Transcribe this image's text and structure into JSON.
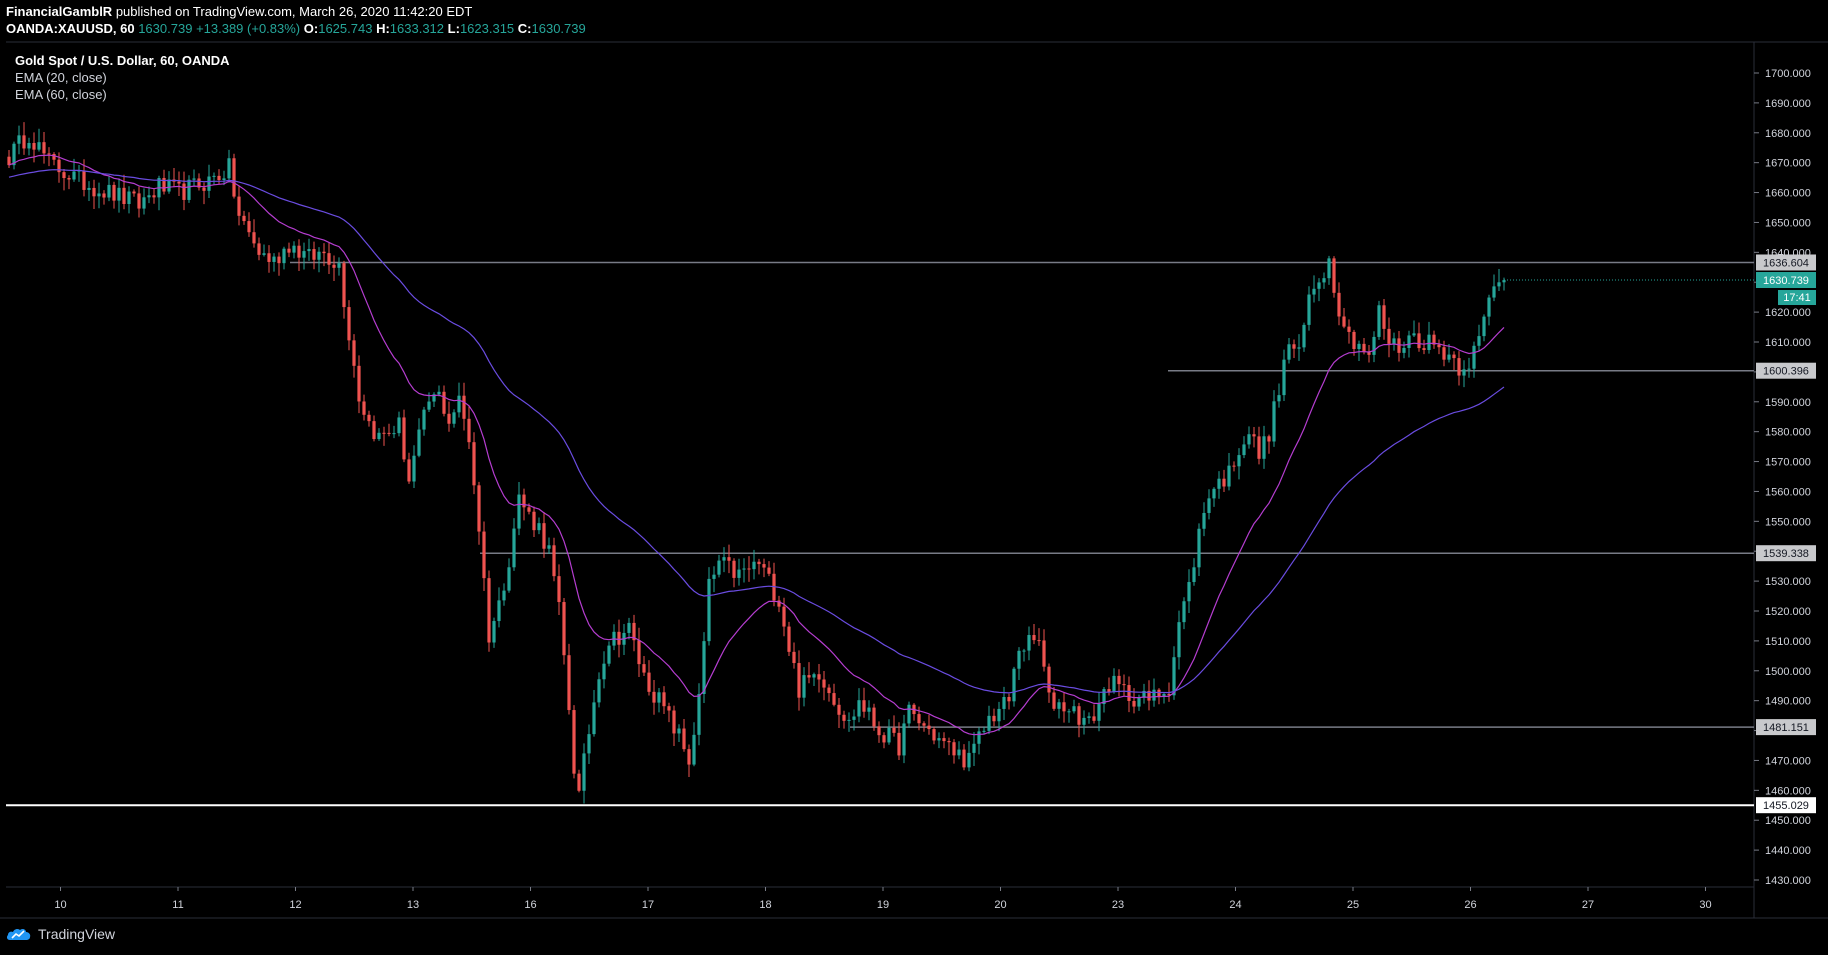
{
  "header": {
    "author": "FinancialGamblR",
    "published_text": "published on TradingView.com, March 26, 2020 11:42:20 EDT",
    "symbol": "OANDA:XAUUSD, 60",
    "last": "1630.739",
    "change": "+13.389 (+0.83%)",
    "o_label": "O:",
    "o": "1625.743",
    "h_label": "H:",
    "h": "1633.312",
    "l_label": "L:",
    "l": "1623.315",
    "c_label": "C:",
    "c": "1630.739"
  },
  "legend": {
    "title": "Gold Spot / U.S. Dollar, 60, OANDA",
    "ema20": "EMA (20, close)",
    "ema60": "EMA (60, close)"
  },
  "branding": "TradingView",
  "colors": {
    "up": "#26a69a",
    "down": "#ef5350",
    "ema20": "#b53dd0",
    "ema60": "#6a4ce0",
    "level_line": "#787b86",
    "support_line": "#ffffff",
    "last_price_bg": "#26a69a"
  },
  "chart_data": {
    "type": "candlestick",
    "ylim": [
      1430,
      1700
    ],
    "y_ticks": [
      1430,
      1440,
      1450,
      1460,
      1470,
      1480,
      1490,
      1500,
      1510,
      1520,
      1530,
      1540,
      1550,
      1560,
      1570,
      1580,
      1590,
      1600,
      1610,
      1620,
      1630,
      1640,
      1650,
      1660,
      1670,
      1680,
      1690,
      1700
    ],
    "y_tick_labels": [
      "1430.000",
      "1440.000",
      "1450.000",
      "1460.000",
      "1470.000",
      "1480.000",
      "1490.000",
      "1500.000",
      "1510.000",
      "1520.000",
      "1530.000",
      "1540.000",
      "1550.000",
      "1560.000",
      "1570.000",
      "1580.000",
      "1590.000",
      "1600.000",
      "1610.000",
      "1620.000",
      "1630.000",
      "1640.000",
      "1650.000",
      "1660.000",
      "1670.000",
      "1680.000",
      "1690.000",
      "1700.000"
    ],
    "x_tick_labels": [
      "10",
      "11",
      "12",
      "13",
      "16",
      "17",
      "18",
      "19",
      "20",
      "23",
      "24",
      "25",
      "26",
      "27",
      "30"
    ],
    "x_tick_index": [
      10.3,
      33.8,
      57.3,
      80.8,
      104.3,
      127.8,
      151.3,
      174.8,
      198.3,
      221.8,
      245.3,
      268.8,
      292.3,
      315.8,
      339.3
    ],
    "levels": [
      {
        "price": 1636.604,
        "label": "1636.604",
        "style": "level"
      },
      {
        "price": 1600.396,
        "label": "1600.396",
        "style": "level"
      },
      {
        "price": 1539.338,
        "label": "1539.338",
        "style": "level"
      },
      {
        "price": 1481.151,
        "label": "1481.151",
        "style": "level"
      },
      {
        "price": 1455.029,
        "label": "1455.029",
        "style": "support"
      }
    ],
    "last_price": {
      "price": 1630.739,
      "label": "1630.739",
      "countdown": "17:41"
    },
    "anchors": [
      [
        0,
        1672
      ],
      [
        4,
        1680
      ],
      [
        8,
        1670
      ],
      [
        14,
        1664
      ],
      [
        20,
        1660
      ],
      [
        26,
        1656
      ],
      [
        30,
        1662
      ],
      [
        34,
        1660
      ],
      [
        40,
        1664
      ],
      [
        44,
        1668
      ],
      [
        46,
        1652
      ],
      [
        50,
        1640
      ],
      [
        53,
        1637
      ],
      [
        56,
        1643
      ],
      [
        60,
        1638
      ],
      [
        63,
        1640
      ],
      [
        66,
        1636
      ],
      [
        68,
        1613
      ],
      [
        70,
        1592
      ],
      [
        72,
        1583
      ],
      [
        74,
        1578
      ],
      [
        78,
        1582
      ],
      [
        80,
        1564
      ],
      [
        82,
        1578
      ],
      [
        84,
        1590
      ],
      [
        86,
        1592
      ],
      [
        88,
        1584
      ],
      [
        90,
        1590
      ],
      [
        92,
        1578
      ],
      [
        94,
        1548
      ],
      [
        96,
        1512
      ],
      [
        98,
        1522
      ],
      [
        100,
        1538
      ],
      [
        102,
        1558
      ],
      [
        104,
        1552
      ],
      [
        106,
        1548
      ],
      [
        108,
        1540
      ],
      [
        110,
        1520
      ],
      [
        112,
        1488
      ],
      [
        113,
        1468
      ],
      [
        114,
        1458
      ],
      [
        116,
        1480
      ],
      [
        118,
        1500
      ],
      [
        120,
        1510
      ],
      [
        124,
        1514
      ],
      [
        127,
        1498
      ],
      [
        130,
        1490
      ],
      [
        134,
        1478
      ],
      [
        136,
        1470
      ],
      [
        138,
        1490
      ],
      [
        140,
        1528
      ],
      [
        142,
        1536
      ],
      [
        146,
        1532
      ],
      [
        150,
        1536
      ],
      [
        154,
        1524
      ],
      [
        156,
        1508
      ],
      [
        158,
        1494
      ],
      [
        162,
        1500
      ],
      [
        166,
        1488
      ],
      [
        168,
        1482
      ],
      [
        170,
        1490
      ],
      [
        174,
        1480
      ],
      [
        178,
        1475
      ],
      [
        180,
        1486
      ],
      [
        184,
        1480
      ],
      [
        188,
        1474
      ],
      [
        192,
        1470
      ],
      [
        196,
        1484
      ],
      [
        200,
        1490
      ],
      [
        202,
        1508
      ],
      [
        206,
        1510
      ],
      [
        208,
        1490
      ],
      [
        212,
        1488
      ],
      [
        216,
        1482
      ],
      [
        220,
        1496
      ],
      [
        224,
        1492
      ],
      [
        228,
        1490
      ],
      [
        232,
        1495
      ],
      [
        234,
        1516
      ],
      [
        236,
        1528
      ],
      [
        238,
        1546
      ],
      [
        240,
        1560
      ],
      [
        244,
        1566
      ],
      [
        246,
        1575
      ],
      [
        248,
        1580
      ],
      [
        250,
        1572
      ],
      [
        252,
        1580
      ],
      [
        254,
        1594
      ],
      [
        256,
        1610
      ],
      [
        258,
        1605
      ],
      [
        260,
        1625
      ],
      [
        262,
        1632
      ],
      [
        264,
        1637
      ],
      [
        266,
        1622
      ],
      [
        268,
        1612
      ],
      [
        270,
        1610
      ],
      [
        272,
        1604
      ],
      [
        274,
        1620
      ],
      [
        276,
        1610
      ],
      [
        278,
        1608
      ],
      [
        280,
        1612
      ],
      [
        284,
        1610
      ],
      [
        288,
        1606
      ],
      [
        290,
        1602
      ],
      [
        292,
        1604
      ],
      [
        294,
        1610
      ],
      [
        296,
        1624
      ],
      [
        298,
        1632
      ],
      [
        299,
        1630.7
      ]
    ],
    "n_candles": 300,
    "ema_periods": [
      20,
      60
    ],
    "ema60_seed": 1665
  }
}
